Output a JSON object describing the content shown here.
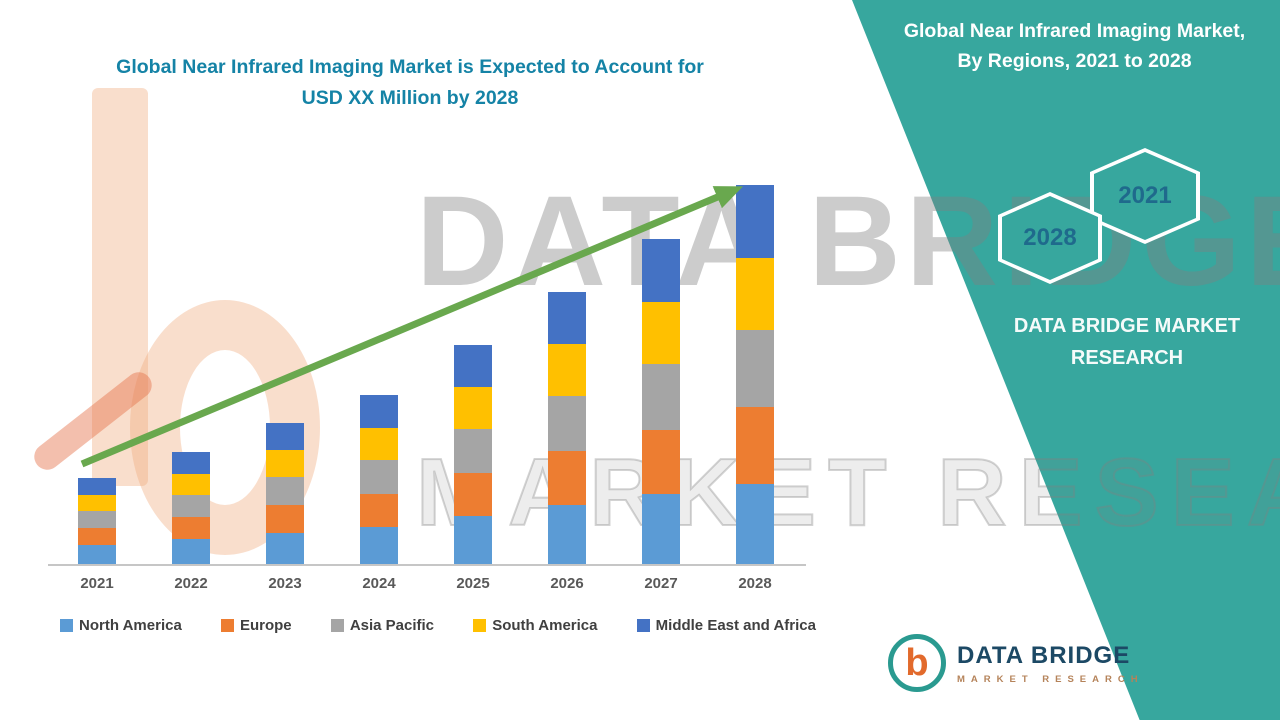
{
  "theme": {
    "panel_teal": "#37a79e",
    "title_text_color": "#1583a6",
    "trend_arrow_green": "#69a84e",
    "watermark_orange": "#f1ad80"
  },
  "main_title": {
    "line1": "Global Near Infrared Imaging Market is Expected to Account for",
    "line2": "USD XX Million by 2028"
  },
  "side_panel": {
    "title": "Global Near Infrared Imaging Market, By Regions, 2021 to 2028",
    "hexagons": [
      {
        "label": "2028"
      },
      {
        "label": "2021"
      }
    ],
    "brand_text": "DATA BRIDGE MARKET RESEARCH"
  },
  "watermark": {
    "line1": "DATA BRIDGE",
    "line2": "MARKET RESEARCH"
  },
  "logo": {
    "glyph": "b",
    "name": "DATA BRIDGE",
    "subtitle": "MARKET RESEARCH"
  },
  "chart_data": {
    "type": "bar",
    "stacked": true,
    "title": "Global Near Infrared Imaging Market is Expected to Account for USD XX Million by 2028",
    "categories": [
      "2021",
      "2022",
      "2023",
      "2024",
      "2025",
      "2026",
      "2027",
      "2028"
    ],
    "series": [
      {
        "name": "North America",
        "color": "#5b9bd5",
        "values": [
          19,
          25,
          31,
          37,
          48,
          59,
          70,
          80
        ]
      },
      {
        "name": "Europe",
        "color": "#ed7d31",
        "values": [
          17,
          22,
          28,
          33,
          43,
          54,
          64,
          77
        ]
      },
      {
        "name": "Asia Pacific",
        "color": "#a5a5a5",
        "values": [
          17,
          22,
          28,
          34,
          44,
          55,
          66,
          77
        ]
      },
      {
        "name": "South America",
        "color": "#ffc000",
        "values": [
          16,
          21,
          27,
          32,
          42,
          52,
          62,
          72
        ]
      },
      {
        "name": "Middle East and Africa",
        "color": "#4472c4",
        "values": [
          17,
          22,
          27,
          33,
          42,
          52,
          63,
          73
        ]
      }
    ],
    "ylim": [
      0,
      400
    ],
    "grid": false,
    "legend_position": "bottom",
    "trend_arrow": true
  }
}
